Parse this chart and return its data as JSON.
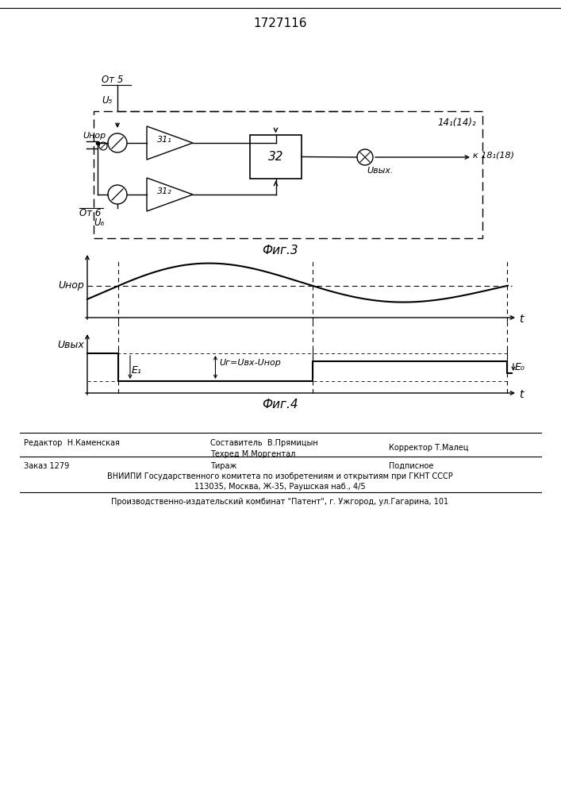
{
  "title": "1727116",
  "fig3_label": "Фиг.3",
  "fig4_label": "Фиг.4",
  "block14_label": "14₁(14)₂",
  "block31_1_label": "31₁",
  "block31_2_label": "31₂",
  "block32_label": "32",
  "ot5_label": "От 5",
  "u5_label": "U₅",
  "unor_label": "Uнор",
  "ot6_label": "От 6",
  "u6_label": "U₆",
  "uvyx_label": "Uвых.",
  "k18_label": "к 18₁(18)",
  "u_nor_graph": "Uнор",
  "u_vyx_graph": "Uвых",
  "ug_label": "Uг=Uвх-Uнор",
  "e1_label": "E₁",
  "e0_label": "E₀",
  "t_label": "t",
  "editor_text": "Редактор  Н.Каменская",
  "composer_text": "Составитель  В.Прямицын",
  "techred_text": "Техред М.Моргентал",
  "corrector_text": "Корректор Т.Малец",
  "order_text": "Заказ 1279",
  "tiraz_text": "Тираж",
  "podpisnoe_text": "Подписное",
  "vnipi_text": "ВНИИПИ Государственного комитета по изобретениям и открытиям при ГКНТ СССР",
  "address_text": "113035, Москва, Ж-35, Раушская наб., 4/5",
  "patent_text": "Производственно-издательский комбинат \"Патент\", г. Ужгород, ул.Гагарина, 101",
  "bg_color": "#ffffff",
  "lc": "#000000"
}
